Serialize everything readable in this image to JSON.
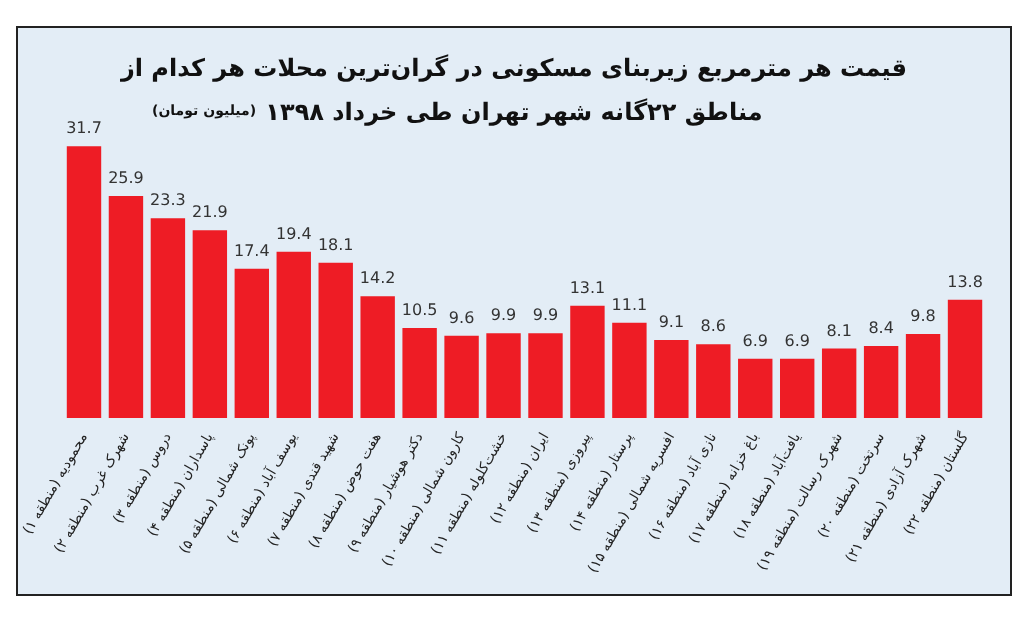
{
  "chart_data": {
    "type": "bar",
    "title": "قیمت هر مترمربع زیربنای مسکونی در گران‌ترین محلات هر کدام از\nمناطق ۲۲گانه شهر تهران طی خرداد ۱۳۹۸",
    "subtitle": "(میلیون تومان)",
    "categories": [
      "محمودیه (منطقه ۱)",
      "شهرک غرب (منطقه ۲)",
      "دروس (منطقه ۳)",
      "پاسداران (منطقه ۴)",
      "پونک شمالی (منطقه ۵)",
      "یوسف آباد (منطقه ۶)",
      "شهید قندی (منطقه ۷)",
      "هفت حوض (منطقه ۸)",
      "دکتر هوشیار (منطقه ۹)",
      "کارون شمالی (منطقه ۱۰)",
      "خشت‌کلوله (منطقه ۱۱)",
      "ایران (منطقه ۱۲)",
      "پیروزی (منطقه ۱۳)",
      "پرستار (منطقه ۱۴)",
      "افسریه شمالی (منطقه ۱۵)",
      "نازی آباد (منطقه ۱۶)",
      "باغ خزانه (منطقه ۱۷)",
      "یافت‌آباد (منطقه ۱۸)",
      "شهرک رسالت (منطقه ۱۹)",
      "سرتخت (منطقه ۲۰)",
      "شهرک آزادی (منطقه ۲۱)",
      "گلستان (منطقه ۲۲)"
    ],
    "values": [
      31.7,
      25.9,
      23.3,
      21.9,
      17.4,
      19.4,
      18.1,
      14.2,
      10.5,
      9.6,
      9.9,
      9.9,
      13.1,
      11.1,
      9.1,
      8.6,
      6.9,
      6.9,
      8.1,
      8.4,
      9.8,
      13.8
    ],
    "color": "#ee1c25",
    "data_labels": true
  }
}
